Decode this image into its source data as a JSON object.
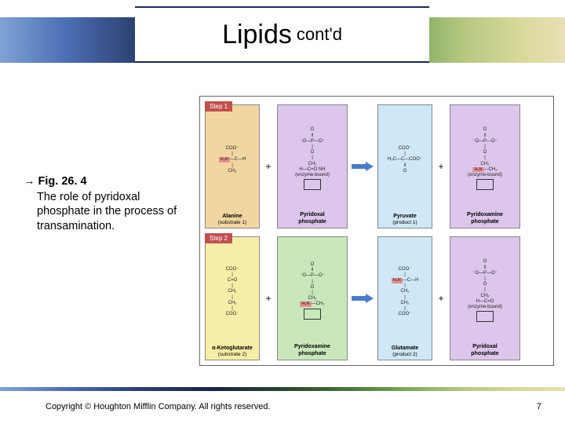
{
  "title": {
    "main": "Lipids",
    "sub": "cont'd"
  },
  "caption": {
    "arrow": "→",
    "fig_label": "Fig. 26. 4",
    "body": "The role of pyridoxal phosphate in the process of transamination."
  },
  "figure": {
    "step1_label": "Step 1",
    "step2_label": "Step 2",
    "plus": "+",
    "arrow_fill": "#4a7bc8",
    "row1": {
      "panels": [
        {
          "bg": "#f2d6a2",
          "label": "Alanine",
          "sub": "(substrate 1)",
          "chem": [
            "COO⁻",
            "|",
            "H₃N—C—H",
            "|",
            "CH₃"
          ],
          "red": "H₃N"
        },
        {
          "bg": "#dcc6ec",
          "label": "Pyridoxal",
          "label2": "phosphate",
          "chem": [
            "O",
            "‖",
            "⁻O—P—O⁻",
            "|",
            "O",
            "|",
            "CH₂",
            "H—C=O   NH",
            "(enzyme-bound)"
          ],
          "ring": true
        },
        {
          "bg": "#cfe7f7",
          "label": "Pyruvate",
          "sub": "(product 1)",
          "chem": [
            "COO⁻",
            "|",
            "H₃C—C—COO⁻",
            "‖",
            "O"
          ]
        },
        {
          "bg": "#dcc6ec",
          "label": "Pyridoxamine",
          "label2": "phosphate",
          "chem": [
            "O",
            "‖",
            "⁻O—P—O⁻",
            "|",
            "O",
            "|",
            "CH₂",
            "H₂N—CH₂",
            "(enzyme-bound)"
          ],
          "red": "H₂N",
          "ring": true
        }
      ]
    },
    "row2": {
      "panels": [
        {
          "bg": "#f6eea6",
          "label": "α-Ketoglutarate",
          "sub": "(substrate 2)",
          "chem": [
            "COO⁻",
            "|",
            "C=O",
            "|",
            "CH₂",
            "|",
            "CH₂",
            "|",
            "COO⁻"
          ]
        },
        {
          "bg": "#c8e8bc",
          "label": "Pyridoxamine",
          "label2": "phosphate",
          "chem": [
            "O",
            "‖",
            "⁻O—P—O⁻",
            "|",
            "O",
            "|",
            "CH₂",
            "H₂N—CH₂"
          ],
          "red": "H₂N",
          "ring": true
        },
        {
          "bg": "#cfe7f7",
          "label": "Glutamate",
          "sub": "(product 2)",
          "chem": [
            "COO⁻",
            "|",
            "H₃N—C—H",
            "|",
            "CH₂",
            "|",
            "CH₂",
            "|",
            "COO⁻"
          ],
          "red": "H₃N"
        },
        {
          "bg": "#dcc6ec",
          "label": "Pyridoxal",
          "label2": "phosphate",
          "chem": [
            "O",
            "‖",
            "⁻O—P—O⁻",
            "|",
            "O",
            "|",
            "CH₂",
            "H—C=O",
            "(enzyme-bound)"
          ],
          "ring": true
        }
      ]
    }
  },
  "footer": {
    "copyright": "Copyright © Houghton Mifflin Company. All rights reserved.",
    "page": "7"
  }
}
